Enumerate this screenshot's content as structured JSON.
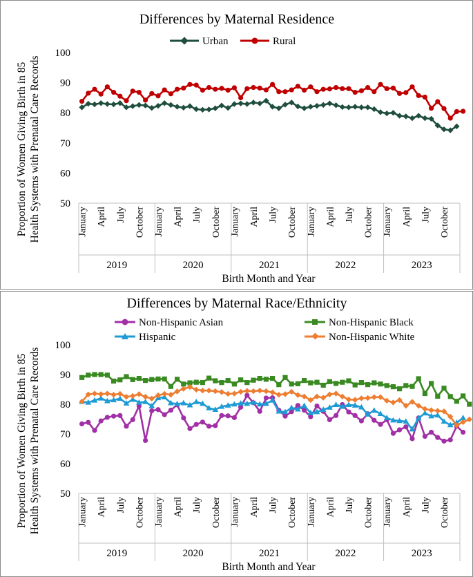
{
  "chart_data": [
    {
      "type": "line",
      "title": "Differences by Maternal Residence",
      "ylabel": [
        "Proportion of Women Giving Birth in 85",
        "Health Systems with Prenatal Care Records"
      ],
      "xlabel": "Birth Month and Year",
      "ylim": [
        50,
        100
      ],
      "yticks": [
        "50",
        "60",
        "70",
        "80",
        "90",
        "100"
      ],
      "month_labels": [
        "January",
        "April",
        "July",
        "October"
      ],
      "years": [
        "2019",
        "2020",
        "2021",
        "2022",
        "2023"
      ],
      "legend_position": "top-center",
      "series": [
        {
          "name": "Urban",
          "color": "#1f4e3d",
          "marker": "diamond",
          "values": [
            81.8,
            83.0,
            82.8,
            83.2,
            82.9,
            82.8,
            83.2,
            81.8,
            82.2,
            82.6,
            82.4,
            81.6,
            82.3,
            83.2,
            82.6,
            82.0,
            81.7,
            82.2,
            81.2,
            81.0,
            81.1,
            81.5,
            82.4,
            81.6,
            82.9,
            83.1,
            82.9,
            83.4,
            83.1,
            84.0,
            82.0,
            81.5,
            82.7,
            83.4,
            82.1,
            81.5,
            82.0,
            82.3,
            82.6,
            83.1,
            82.5,
            81.9,
            81.8,
            82.0,
            81.8,
            81.8,
            81.2,
            80.2,
            79.8,
            80.0,
            79.0,
            78.8,
            78.2,
            79.0,
            78.2,
            78.0,
            75.8,
            74.5,
            74.2,
            75.5
          ]
        },
        {
          "name": "Rural",
          "color": "#c00000",
          "marker": "circle",
          "values": [
            83.8,
            86.5,
            87.8,
            86.2,
            88.6,
            86.8,
            85.5,
            84.0,
            87.2,
            86.8,
            84.2,
            86.4,
            85.6,
            87.6,
            86.3,
            87.8,
            88.2,
            89.4,
            89.2,
            87.5,
            88.4,
            87.8,
            88.1,
            87.5,
            88.3,
            85.0,
            88.0,
            88.4,
            88.2,
            87.6,
            89.4,
            87.0,
            87.0,
            87.6,
            88.8,
            87.5,
            88.6,
            87.0,
            87.8,
            87.9,
            88.4,
            88.0,
            88.0,
            86.8,
            87.3,
            88.4,
            87.0,
            89.4,
            88.0,
            88.2,
            86.4,
            86.7,
            88.6,
            85.7,
            85.2,
            81.5,
            83.7,
            81.4,
            78.2,
            80.4,
            80.5
          ]
        }
      ]
    },
    {
      "type": "line",
      "title": "Differences by Maternal Race/Ethnicity",
      "ylabel": [
        "Proportion of Women Giving Birth in 85",
        "Health Systems with Prenatal Care Records"
      ],
      "xlabel": "Birth Month and Year",
      "ylim": [
        50,
        100
      ],
      "yticks": [
        "50",
        "60",
        "70",
        "80",
        "90",
        "100"
      ],
      "month_labels": [
        "January",
        "April",
        "July",
        "October"
      ],
      "years": [
        "2019",
        "2020",
        "2021",
        "2022",
        "2023"
      ],
      "legend_position": "top",
      "series": [
        {
          "name": "Non-Hispanic Asian",
          "color": "#a12fa5",
          "marker": "circle",
          "values": [
            73.4,
            73.9,
            71.2,
            74.4,
            75.6,
            76.0,
            76.2,
            72.6,
            74.8,
            79.4,
            67.8,
            77.8,
            78.2,
            76.5,
            78.0,
            79.8,
            75.4,
            71.8,
            73.2,
            74.0,
            72.6,
            72.8,
            76.2,
            76.1,
            75.5,
            79.0,
            83.0,
            80.5,
            77.6,
            82.1,
            82.2,
            78.0,
            76.0,
            77.5,
            79.6,
            78.0,
            75.8,
            79.4,
            77.6,
            74.8,
            76.2,
            79.9,
            77.4,
            76.2,
            74.4,
            76.8,
            74.6,
            73.2,
            74.8,
            70.2,
            71.4,
            72.4,
            68.4,
            75.4,
            69.2,
            70.6,
            68.8,
            67.6,
            68.0,
            72.6,
            70.6
          ]
        },
        {
          "name": "Non-Hispanic Black",
          "color": "#3a8a22",
          "marker": "square",
          "values": [
            89.0,
            89.8,
            90.0,
            90.0,
            89.8,
            87.8,
            88.2,
            89.3,
            88.3,
            88.7,
            88.0,
            88.3,
            88.5,
            88.5,
            86.0,
            88.4,
            86.8,
            87.2,
            87.4,
            87.3,
            88.8,
            87.9,
            87.3,
            88.0,
            86.8,
            88.2,
            87.3,
            88.1,
            88.7,
            88.4,
            88.7,
            86.6,
            89.0,
            86.8,
            86.9,
            88.0,
            87.2,
            87.4,
            86.4,
            87.6,
            87.0,
            87.4,
            87.9,
            86.5,
            87.3,
            86.6,
            87.2,
            86.8,
            86.3,
            85.9,
            85.2,
            86.3,
            86.0,
            88.6,
            83.6,
            87.0,
            82.7,
            85.4,
            82.6,
            81.0,
            82.8,
            80.0
          ]
        },
        {
          "name": "Hispanic",
          "color": "#1e9bd4",
          "marker": "triangle",
          "values": [
            80.9,
            80.6,
            81.3,
            82.0,
            81.1,
            81.4,
            81.9,
            80.3,
            81.6,
            80.6,
            80.8,
            79.4,
            82.1,
            82.4,
            80.4,
            80.1,
            80.4,
            79.7,
            80.8,
            80.2,
            78.7,
            78.2,
            79.2,
            79.6,
            80.0,
            80.3,
            80.2,
            80.6,
            80.0,
            80.2,
            81.3,
            77.6,
            77.4,
            78.8,
            78.3,
            79.5,
            77.1,
            77.4,
            78.2,
            78.9,
            79.8,
            79.2,
            79.8,
            79.6,
            79.0,
            76.6,
            77.9,
            76.8,
            75.4,
            74.6,
            74.4,
            74.2,
            71.6,
            75.3,
            77.0,
            76.0,
            76.3,
            74.2,
            73.0,
            73.8,
            75.4
          ]
        },
        {
          "name": "Non-Hispanic White",
          "color": "#ed7d31",
          "marker": "diamond",
          "values": [
            80.9,
            83.3,
            83.6,
            83.4,
            83.6,
            83.2,
            83.5,
            82.5,
            82.8,
            83.4,
            82.5,
            81.9,
            83.0,
            83.5,
            83.2,
            84.3,
            85.2,
            85.8,
            84.9,
            84.6,
            84.6,
            84.4,
            84.1,
            83.5,
            83.6,
            84.2,
            84.5,
            84.4,
            84.6,
            84.4,
            84.0,
            83.2,
            83.4,
            84.2,
            83.1,
            82.6,
            81.4,
            82.6,
            82.2,
            83.3,
            83.6,
            82.6,
            81.6,
            81.5,
            82.0,
            82.1,
            82.4,
            82.4,
            81.2,
            80.6,
            81.4,
            79.5,
            80.8,
            79.5,
            78.4,
            78.0,
            77.8,
            77.6,
            75.8,
            72.9,
            74.0,
            74.9
          ]
        }
      ]
    }
  ]
}
